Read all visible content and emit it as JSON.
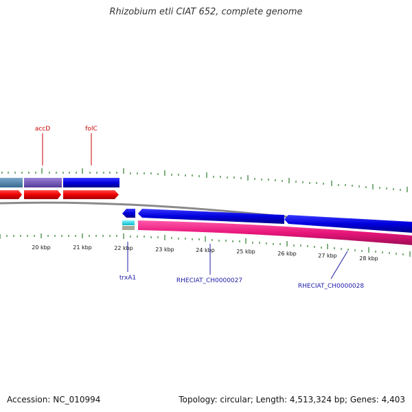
{
  "title": "Rhizobium etli CIAT 652, complete genome",
  "footer": {
    "accession": "Accession: NC_010994",
    "info": "Topology: circular; Length: 4,513,324 bp; Genes: 4,403"
  },
  "scale_labels": [
    "20 kbp",
    "21 kbp",
    "22 kbp",
    "23 kbp",
    "24 kbp",
    "25 kbp",
    "26 kbp",
    "27 kbp",
    "28 kbp"
  ],
  "gene_labels": {
    "top": [
      "accD",
      "folC"
    ],
    "bottom": [
      "trxA1",
      "RHECIAT_CH0000027",
      "RHECIAT_CH0000028"
    ]
  },
  "colors": {
    "forward_cds": "#0000dd",
    "reverse_red": "#ee0000",
    "rna_pink": "#e8157a",
    "backbone": "#888888",
    "tick_green": "#2a7a2a",
    "steelblue": "#4a7fa8",
    "purple": "#6a4fb0",
    "cyan": "#22d4e0"
  }
}
